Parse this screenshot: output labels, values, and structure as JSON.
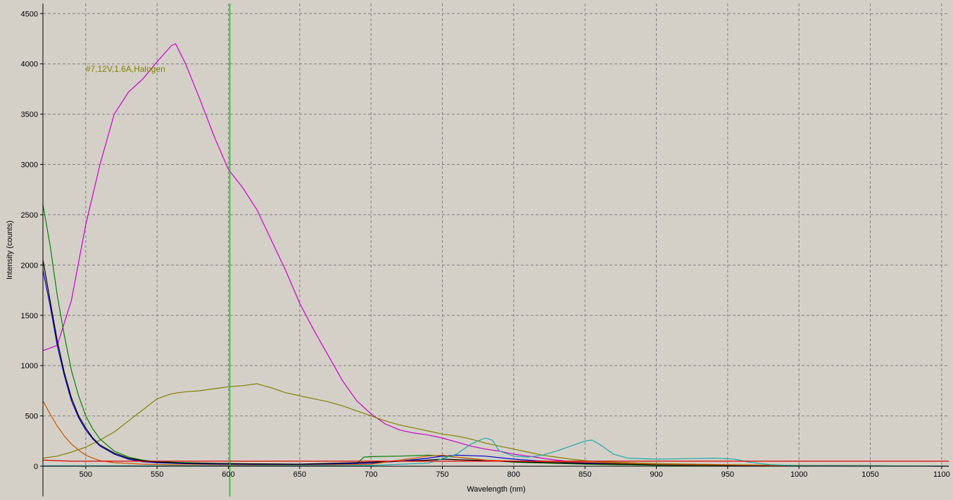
{
  "colors": {
    "background": "#d4d0c8",
    "grid": "#808080",
    "axis": "#000000",
    "cursor": "#00cc00",
    "annotation": "#808000"
  },
  "chart_data": {
    "type": "line",
    "title": "",
    "xlabel": "Wavelength (nm)",
    "ylabel": "Intensity (counts)",
    "xlim": [
      470,
      1105
    ],
    "ylim": [
      0,
      4600
    ],
    "x_ticks": [
      500,
      550,
      600,
      650,
      700,
      750,
      800,
      850,
      900,
      950,
      1000,
      1050,
      1100
    ],
    "y_ticks": [
      0,
      500,
      1000,
      1500,
      2000,
      2500,
      3000,
      3500,
      4000,
      4500
    ],
    "grid": true,
    "grid_style": "dashed",
    "cursor_x": 601,
    "annotations": [
      {
        "text": "#7,12V,1.6A,Halogen",
        "x": 500,
        "y": 3920
      }
    ],
    "series": [
      {
        "color": "#cc00cc",
        "points": [
          [
            470,
            1150
          ],
          [
            480,
            1200
          ],
          [
            490,
            1650
          ],
          [
            500,
            2400
          ],
          [
            510,
            3000
          ],
          [
            520,
            3500
          ],
          [
            530,
            3720
          ],
          [
            540,
            3850
          ],
          [
            550,
            4020
          ],
          [
            560,
            4180
          ],
          [
            563,
            4200
          ],
          [
            570,
            4000
          ],
          [
            580,
            3650
          ],
          [
            590,
            3280
          ],
          [
            600,
            2950
          ],
          [
            610,
            2770
          ],
          [
            620,
            2550
          ],
          [
            630,
            2250
          ],
          [
            640,
            1950
          ],
          [
            650,
            1620
          ],
          [
            660,
            1350
          ],
          [
            670,
            1100
          ],
          [
            680,
            850
          ],
          [
            690,
            650
          ],
          [
            700,
            520
          ],
          [
            710,
            420
          ],
          [
            720,
            360
          ],
          [
            730,
            330
          ],
          [
            740,
            310
          ],
          [
            750,
            280
          ],
          [
            760,
            240
          ],
          [
            770,
            200
          ],
          [
            780,
            170
          ],
          [
            790,
            150
          ],
          [
            800,
            120
          ],
          [
            810,
            100
          ],
          [
            820,
            80
          ],
          [
            830,
            60
          ],
          [
            840,
            45
          ],
          [
            860,
            30
          ],
          [
            880,
            20
          ],
          [
            900,
            15
          ],
          [
            950,
            10
          ],
          [
            1000,
            5
          ],
          [
            1050,
            3
          ],
          [
            1105,
            0
          ]
        ]
      },
      {
        "color": "#808000",
        "points": [
          [
            470,
            80
          ],
          [
            480,
            100
          ],
          [
            490,
            140
          ],
          [
            500,
            190
          ],
          [
            510,
            260
          ],
          [
            520,
            340
          ],
          [
            530,
            450
          ],
          [
            540,
            560
          ],
          [
            550,
            670
          ],
          [
            560,
            720
          ],
          [
            570,
            740
          ],
          [
            580,
            750
          ],
          [
            590,
            770
          ],
          [
            600,
            790
          ],
          [
            610,
            800
          ],
          [
            620,
            820
          ],
          [
            630,
            780
          ],
          [
            640,
            730
          ],
          [
            650,
            700
          ],
          [
            660,
            670
          ],
          [
            670,
            640
          ],
          [
            680,
            600
          ],
          [
            690,
            550
          ],
          [
            700,
            500
          ],
          [
            710,
            450
          ],
          [
            720,
            410
          ],
          [
            730,
            380
          ],
          [
            740,
            350
          ],
          [
            750,
            320
          ],
          [
            760,
            300
          ],
          [
            770,
            270
          ],
          [
            780,
            230
          ],
          [
            790,
            200
          ],
          [
            800,
            170
          ],
          [
            810,
            140
          ],
          [
            820,
            110
          ],
          [
            830,
            90
          ],
          [
            840,
            70
          ],
          [
            850,
            55
          ],
          [
            860,
            45
          ],
          [
            880,
            35
          ],
          [
            900,
            25
          ],
          [
            950,
            15
          ],
          [
            1000,
            8
          ],
          [
            1050,
            5
          ],
          [
            1105,
            2
          ]
        ]
      },
      {
        "color": "#008000",
        "points": [
          [
            470,
            2600
          ],
          [
            475,
            2200
          ],
          [
            480,
            1700
          ],
          [
            485,
            1300
          ],
          [
            490,
            950
          ],
          [
            495,
            700
          ],
          [
            500,
            500
          ],
          [
            505,
            370
          ],
          [
            510,
            270
          ],
          [
            520,
            150
          ],
          [
            530,
            90
          ],
          [
            540,
            60
          ],
          [
            550,
            45
          ],
          [
            570,
            35
          ],
          [
            600,
            25
          ],
          [
            650,
            20
          ],
          [
            690,
            25
          ],
          [
            695,
            90
          ],
          [
            700,
            95
          ],
          [
            720,
            100
          ],
          [
            740,
            110
          ],
          [
            750,
            100
          ],
          [
            760,
            90
          ],
          [
            780,
            60
          ],
          [
            800,
            40
          ],
          [
            850,
            20
          ],
          [
            900,
            10
          ],
          [
            1000,
            5
          ],
          [
            1105,
            2
          ]
        ]
      },
      {
        "color": "#0000cc",
        "points": [
          [
            470,
            1950
          ],
          [
            475,
            1600
          ],
          [
            480,
            1200
          ],
          [
            485,
            900
          ],
          [
            490,
            650
          ],
          [
            495,
            480
          ],
          [
            500,
            360
          ],
          [
            505,
            270
          ],
          [
            510,
            200
          ],
          [
            520,
            120
          ],
          [
            530,
            70
          ],
          [
            540,
            45
          ],
          [
            550,
            35
          ],
          [
            570,
            25
          ],
          [
            600,
            20
          ],
          [
            650,
            15
          ],
          [
            700,
            30
          ],
          [
            720,
            50
          ],
          [
            740,
            80
          ],
          [
            750,
            100
          ],
          [
            760,
            110
          ],
          [
            780,
            100
          ],
          [
            800,
            70
          ],
          [
            820,
            50
          ],
          [
            850,
            30
          ],
          [
            900,
            15
          ],
          [
            1000,
            5
          ],
          [
            1105,
            2
          ]
        ]
      },
      {
        "color": "#000000",
        "points": [
          [
            470,
            2050
          ],
          [
            475,
            1650
          ],
          [
            480,
            1250
          ],
          [
            485,
            930
          ],
          [
            490,
            680
          ],
          [
            495,
            500
          ],
          [
            500,
            380
          ],
          [
            505,
            280
          ],
          [
            510,
            210
          ],
          [
            520,
            130
          ],
          [
            530,
            80
          ],
          [
            540,
            55
          ],
          [
            550,
            40
          ],
          [
            570,
            30
          ],
          [
            600,
            25
          ],
          [
            650,
            20
          ],
          [
            700,
            40
          ],
          [
            720,
            50
          ],
          [
            740,
            60
          ],
          [
            750,
            70
          ],
          [
            770,
            60
          ],
          [
            800,
            45
          ],
          [
            850,
            25
          ],
          [
            900,
            15
          ],
          [
            1000,
            5
          ],
          [
            1105,
            2
          ]
        ]
      },
      {
        "color": "#cc5500",
        "points": [
          [
            470,
            650
          ],
          [
            475,
            520
          ],
          [
            480,
            400
          ],
          [
            485,
            300
          ],
          [
            490,
            220
          ],
          [
            495,
            160
          ],
          [
            500,
            110
          ],
          [
            505,
            80
          ],
          [
            510,
            55
          ],
          [
            520,
            35
          ],
          [
            540,
            20
          ],
          [
            560,
            15
          ],
          [
            600,
            12
          ],
          [
            650,
            10
          ],
          [
            700,
            20
          ],
          [
            720,
            60
          ],
          [
            740,
            100
          ],
          [
            750,
            110
          ],
          [
            760,
            90
          ],
          [
            780,
            60
          ],
          [
            800,
            50
          ],
          [
            850,
            40
          ],
          [
            900,
            20
          ],
          [
            1000,
            5
          ],
          [
            1105,
            2
          ]
        ]
      },
      {
        "color": "#20a8a8",
        "points": [
          [
            470,
            5
          ],
          [
            600,
            5
          ],
          [
            700,
            8
          ],
          [
            740,
            30
          ],
          [
            760,
            120
          ],
          [
            770,
            220
          ],
          [
            780,
            280
          ],
          [
            785,
            260
          ],
          [
            790,
            150
          ],
          [
            800,
            100
          ],
          [
            810,
            90
          ],
          [
            820,
            110
          ],
          [
            830,
            150
          ],
          [
            840,
            200
          ],
          [
            850,
            250
          ],
          [
            855,
            260
          ],
          [
            860,
            220
          ],
          [
            870,
            120
          ],
          [
            880,
            80
          ],
          [
            900,
            70
          ],
          [
            920,
            75
          ],
          [
            940,
            80
          ],
          [
            955,
            70
          ],
          [
            965,
            40
          ],
          [
            980,
            15
          ],
          [
            1000,
            5
          ],
          [
            1105,
            2
          ]
        ]
      },
      {
        "color": "#e00000",
        "points": [
          [
            470,
            60
          ],
          [
            480,
            55
          ],
          [
            490,
            50
          ],
          [
            500,
            50
          ],
          [
            1105,
            50
          ]
        ]
      }
    ]
  }
}
